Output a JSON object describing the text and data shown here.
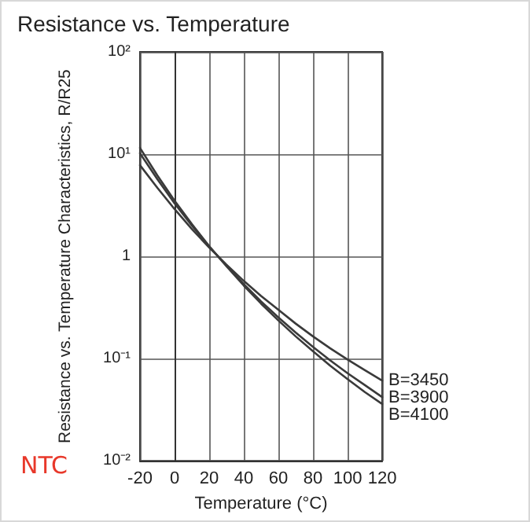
{
  "chart_data": {
    "type": "line",
    "title": "Resistance vs. Temperature",
    "xlabel": "Temperature (°C)",
    "ylabel": "Resistance vs. Temperature Characteristics, R/R25",
    "annotations": [
      "NTC"
    ],
    "x": [
      -20,
      -10,
      0,
      10,
      20,
      30,
      40,
      50,
      60,
      70,
      80,
      90,
      100,
      110,
      120
    ],
    "series": [
      {
        "name": "B=3450",
        "color": "#3a3a3a",
        "values": [
          7.8,
          4.7,
          2.9,
          1.85,
          1.22,
          0.83,
          0.575,
          0.41,
          0.3,
          0.22,
          0.165,
          0.126,
          0.098,
          0.077,
          0.061
        ]
      },
      {
        "name": "B=3900",
        "color": "#3a3a3a",
        "values": [
          10.2,
          5.7,
          3.3,
          2.0,
          1.25,
          0.81,
          0.535,
          0.363,
          0.253,
          0.18,
          0.13,
          0.096,
          0.072,
          0.055,
          0.042
        ]
      },
      {
        "name": "B=4100",
        "color": "#3a3a3a",
        "values": [
          11.5,
          6.2,
          3.5,
          2.07,
          1.26,
          0.8,
          0.518,
          0.345,
          0.236,
          0.165,
          0.118,
          0.085,
          0.063,
          0.047,
          0.036
        ]
      }
    ],
    "xlim": [
      -20,
      120
    ],
    "xticks": [
      -20,
      0,
      20,
      40,
      60,
      80,
      100,
      120
    ],
    "ylim": [
      0.01,
      100
    ],
    "log": "y",
    "yticks": [
      {
        "value": 0.01,
        "label": "10⁻²"
      },
      {
        "value": 0.1,
        "label": "10⁻¹"
      },
      {
        "value": 1,
        "label": "1"
      },
      {
        "value": 10,
        "label": "10¹"
      },
      {
        "value": 100,
        "label": "10²"
      }
    ],
    "grid": true,
    "legend": false,
    "marker": "none",
    "line_style": "solid"
  }
}
